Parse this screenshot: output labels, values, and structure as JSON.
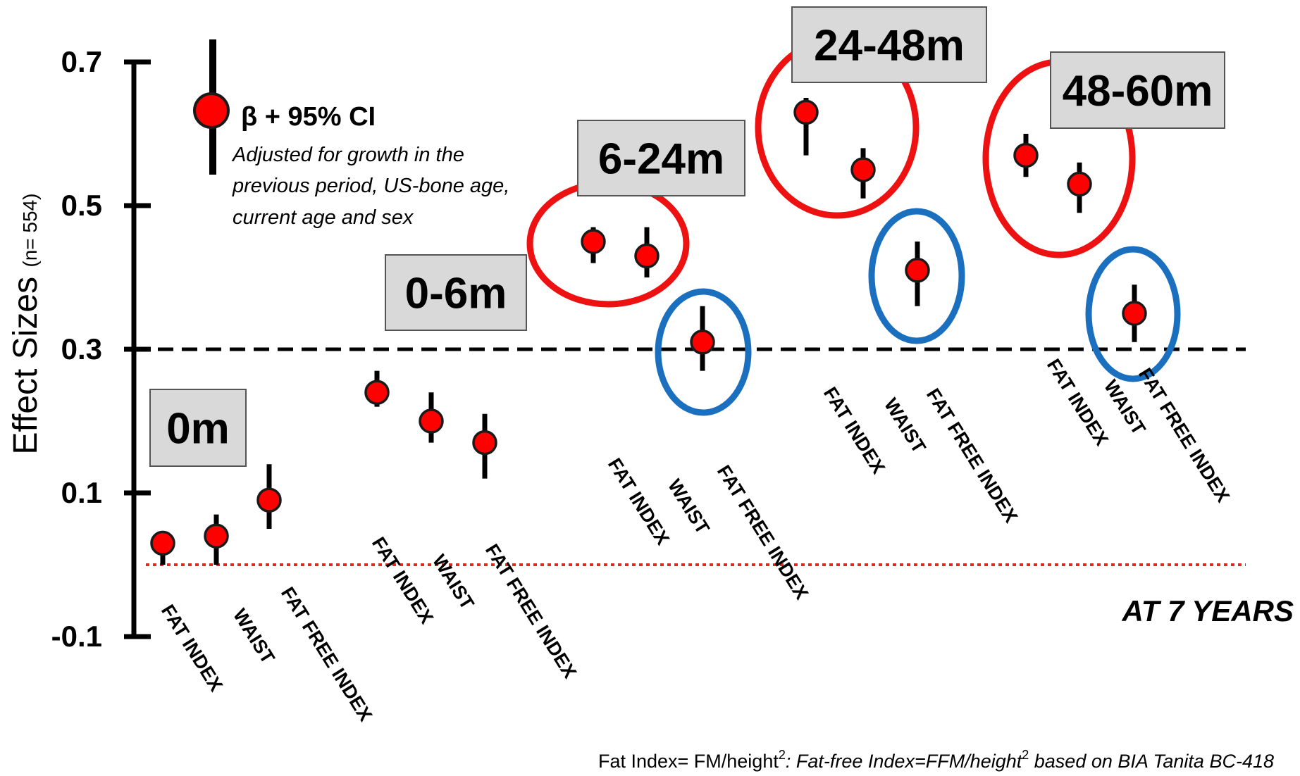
{
  "chart_data": {
    "type": "scatter",
    "ylabel": "Effect Sizes",
    "ylabel_sub": "(n= 554)",
    "ylim": [
      -0.1,
      0.7
    ],
    "yticks": [
      0.7,
      0.5,
      0.3,
      0.1,
      -0.1
    ],
    "ytick_labels": [
      "0.7",
      "0.5",
      "0.3",
      "0.1",
      "-0.1"
    ],
    "reference_lines": [
      {
        "value": 0.3,
        "style": "dashed",
        "color": "#000000"
      },
      {
        "value": 0.0,
        "style": "dotted",
        "color": "#e8241b"
      }
    ],
    "legend": {
      "marker": "circle with vertical bar",
      "title": "β + 95% CI",
      "note_lines": [
        "Adjusted for growth in the",
        "previous period, US-bone age,",
        "current age  and sex"
      ]
    },
    "groups": [
      {
        "period": "0m",
        "points": [
          {
            "category": "FAT INDEX",
            "beta": 0.03,
            "ci": [
              0.0,
              0.04
            ],
            "circle": null
          },
          {
            "category": "WAIST",
            "beta": 0.04,
            "ci": [
              0.0,
              0.07
            ],
            "circle": null
          },
          {
            "category": "FAT FREE INDEX",
            "beta": 0.09,
            "ci": [
              0.05,
              0.14
            ],
            "circle": null
          }
        ]
      },
      {
        "period": "0-6m",
        "points": [
          {
            "category": "FAT INDEX",
            "beta": 0.24,
            "ci": [
              0.22,
              0.27
            ],
            "circle": null
          },
          {
            "category": "WAIST",
            "beta": 0.2,
            "ci": [
              0.17,
              0.24
            ],
            "circle": null
          },
          {
            "category": "FAT FREE INDEX",
            "beta": 0.17,
            "ci": [
              0.12,
              0.21
            ],
            "circle": null
          }
        ]
      },
      {
        "period": "6-24m",
        "points": [
          {
            "category": "FAT INDEX",
            "beta": 0.45,
            "ci": [
              0.42,
              0.47
            ],
            "circle": "red"
          },
          {
            "category": "WAIST",
            "beta": 0.43,
            "ci": [
              0.4,
              0.47
            ],
            "circle": "red"
          },
          {
            "category": "FAT FREE INDEX",
            "beta": 0.31,
            "ci": [
              0.27,
              0.36
            ],
            "circle": "blue"
          }
        ]
      },
      {
        "period": "24-48m",
        "points": [
          {
            "category": "FAT INDEX",
            "beta": 0.63,
            "ci": [
              0.57,
              0.65
            ],
            "circle": "red"
          },
          {
            "category": "WAIST",
            "beta": 0.55,
            "ci": [
              0.51,
              0.58
            ],
            "circle": "red"
          },
          {
            "category": "FAT FREE INDEX",
            "beta": 0.41,
            "ci": [
              0.36,
              0.45
            ],
            "circle": "blue"
          }
        ]
      },
      {
        "period": "48-60m",
        "points": [
          {
            "category": "FAT INDEX",
            "beta": 0.57,
            "ci": [
              0.54,
              0.6
            ],
            "circle": "red"
          },
          {
            "category": "WAIST",
            "beta": 0.53,
            "ci": [
              0.49,
              0.56
            ],
            "circle": "red"
          },
          {
            "category": "FAT FREE INDEX",
            "beta": 0.35,
            "ci": [
              0.31,
              0.39
            ],
            "circle": "blue"
          }
        ]
      }
    ],
    "annotation_outcome": "AT 7 YEARS",
    "footnote": {
      "part1": "Fat Index= FM/height",
      "sup1": "2",
      "part2": ": Fat-free Index=FFM/height",
      "sup2": "2",
      "part3": " based on  BIA Tanita BC-418"
    },
    "colors": {
      "marker_fill": "#ff0000",
      "marker_stroke": "#1a1a1a",
      "red_ellipse": "#ee1111",
      "blue_ellipse": "#1a6fbf",
      "label_box_fill": "#d9d9d9",
      "label_box_stroke": "#555555",
      "axis": "#000000"
    }
  }
}
